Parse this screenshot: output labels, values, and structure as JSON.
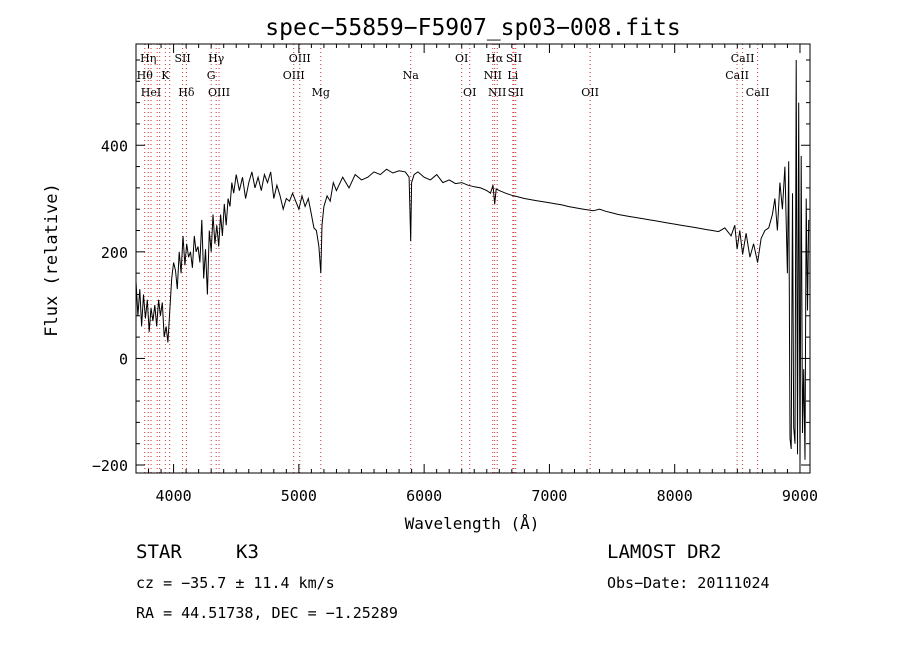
{
  "chart_data": {
    "type": "line",
    "title": "spec−55859−F5907_sp03−008.fits",
    "xlabel": "Wavelength (Å)",
    "ylabel": "Flux (relative)",
    "xlim": [
      3700,
      9080
    ],
    "ylim": [
      -215,
      590
    ],
    "xticks": [
      4000,
      5000,
      6000,
      7000,
      8000,
      9000
    ],
    "yticks": [
      -200,
      0,
      200,
      400
    ],
    "grid": false,
    "line_color": "#000000",
    "marker_color": "#cc3333",
    "series": [
      {
        "x": [
          3700,
          3715,
          3730,
          3745,
          3760,
          3775,
          3790,
          3805,
          3820,
          3835,
          3850,
          3865,
          3880,
          3895,
          3910,
          3925,
          3940,
          3955,
          3970,
          3985,
          4000,
          4015,
          4030,
          4045,
          4060,
          4075,
          4090,
          4105,
          4120,
          4135,
          4150,
          4165,
          4180,
          4195,
          4210,
          4225,
          4240,
          4255,
          4270,
          4285,
          4300,
          4315,
          4330,
          4345,
          4360,
          4375,
          4390,
          4405,
          4420,
          4435,
          4450,
          4465,
          4480,
          4500,
          4525,
          4550,
          4575,
          4600,
          4625,
          4650,
          4675,
          4700,
          4725,
          4750,
          4775,
          4800,
          4825,
          4850,
          4875,
          4900,
          4925,
          4950,
          4975,
          5000,
          5025,
          5050,
          5075,
          5100,
          5120,
          5140,
          5160,
          5175,
          5185,
          5200,
          5225,
          5250,
          5275,
          5300,
          5350,
          5400,
          5450,
          5500,
          5550,
          5600,
          5650,
          5700,
          5750,
          5800,
          5850,
          5880,
          5893,
          5900,
          5920,
          5950,
          6000,
          6050,
          6100,
          6150,
          6200,
          6250,
          6300,
          6350,
          6400,
          6450,
          6500,
          6530,
          6550,
          6563,
          6575,
          6600,
          6650,
          6700,
          6750,
          6800,
          6850,
          6900,
          6950,
          7000,
          7050,
          7100,
          7150,
          7200,
          7250,
          7300,
          7350,
          7400,
          7450,
          7500,
          7550,
          7600,
          7650,
          7700,
          7750,
          7800,
          7850,
          7900,
          7950,
          8000,
          8050,
          8100,
          8150,
          8200,
          8250,
          8300,
          8350,
          8400,
          8450,
          8480,
          8498,
          8520,
          8542,
          8570,
          8600,
          8630,
          8662,
          8690,
          8720,
          8750,
          8780,
          8800,
          8820,
          8840,
          8860,
          8880,
          8900,
          8910,
          8920,
          8930,
          8940,
          8950,
          8960,
          8970,
          8980,
          8990,
          9000,
          9010,
          9020,
          9030,
          9040,
          9050,
          9060,
          9070
        ],
        "y": [
          145,
          80,
          130,
          60,
          120,
          75,
          110,
          50,
          95,
          70,
          100,
          60,
          110,
          80,
          105,
          40,
          60,
          30,
          90,
          150,
          180,
          165,
          130,
          200,
          160,
          230,
          175,
          215,
          190,
          200,
          170,
          230,
          200,
          210,
          180,
          260,
          150,
          205,
          120,
          240,
          200,
          270,
          215,
          250,
          210,
          270,
          230,
          290,
          250,
          300,
          285,
          330,
          310,
          345,
          315,
          340,
          300,
          330,
          350,
          320,
          340,
          315,
          345,
          330,
          350,
          300,
          325,
          305,
          280,
          300,
          295,
          310,
          295,
          280,
          305,
          285,
          300,
          270,
          245,
          240,
          210,
          160,
          250,
          285,
          305,
          295,
          330,
          315,
          340,
          320,
          345,
          335,
          340,
          350,
          345,
          355,
          348,
          352,
          350,
          340,
          220,
          330,
          345,
          350,
          340,
          335,
          345,
          330,
          335,
          328,
          330,
          325,
          322,
          320,
          315,
          310,
          325,
          290,
          318,
          315,
          310,
          306,
          303,
          300,
          298,
          296,
          294,
          292,
          290,
          288,
          285,
          283,
          281,
          279,
          277,
          280,
          276,
          273,
          270,
          268,
          266,
          264,
          262,
          260,
          258,
          256,
          254,
          252,
          250,
          248,
          246,
          244,
          242,
          240,
          238,
          245,
          230,
          250,
          205,
          240,
          195,
          235,
          190,
          215,
          180,
          225,
          240,
          245,
          270,
          300,
          240,
          330,
          280,
          360,
          160,
          370,
          -150,
          -170,
          310,
          -130,
          -160,
          560,
          -180,
          480,
          -200,
          380,
          -140,
          -20,
          -190,
          300,
          90,
          260
        ]
      }
    ],
    "lines": [
      {
        "wl": 3770,
        "label": "Hθ",
        "row": 1
      },
      {
        "wl": 3798,
        "label": "Hη",
        "row": 0
      },
      {
        "wl": 3820,
        "label": "HeI",
        "row": 2
      },
      {
        "wl": 3869,
        "label": "",
        "row": 0
      },
      {
        "wl": 3889,
        "label": "",
        "row": 1
      },
      {
        "wl": 3934,
        "label": "K",
        "row": 1
      },
      {
        "wl": 3969,
        "label": "",
        "row": 1
      },
      {
        "wl": 4072,
        "label": "SII",
        "row": 0
      },
      {
        "wl": 4102,
        "label": "Hδ",
        "row": 2
      },
      {
        "wl": 4300,
        "label": "G",
        "row": 1
      },
      {
        "wl": 4340,
        "label": "Hγ",
        "row": 0
      },
      {
        "wl": 4363,
        "label": "OIII",
        "row": 2
      },
      {
        "wl": 4959,
        "label": "OIII",
        "row": 1
      },
      {
        "wl": 5007,
        "label": "OIII",
        "row": 0
      },
      {
        "wl": 5175,
        "label": "Mg",
        "row": 2
      },
      {
        "wl": 5893,
        "label": "Na",
        "row": 1
      },
      {
        "wl": 6300,
        "label": "OI",
        "row": 0
      },
      {
        "wl": 6364,
        "label": "OI",
        "row": 2
      },
      {
        "wl": 6548,
        "label": "NII",
        "row": 1
      },
      {
        "wl": 6563,
        "label": "Hα",
        "row": 0
      },
      {
        "wl": 6583,
        "label": "NII",
        "row": 2
      },
      {
        "wl": 6708,
        "label": "Li",
        "row": 1
      },
      {
        "wl": 6717,
        "label": "SII",
        "row": 0
      },
      {
        "wl": 6731,
        "label": "SII",
        "row": 2
      },
      {
        "wl": 7325,
        "label": "OII",
        "row": 2
      },
      {
        "wl": 8498,
        "label": "CaII",
        "row": 1
      },
      {
        "wl": 8542,
        "label": "CaII",
        "row": 0
      },
      {
        "wl": 8662,
        "label": "CaII",
        "row": 2
      }
    ]
  },
  "info": {
    "class_label": "STAR",
    "subclass": "K3",
    "survey": "LAMOST DR2",
    "redshift": "cz = −35.7 ± 11.4 km/s",
    "obs_date": "Obs−Date: 20111024",
    "coords": "RA =  44.51738, DEC =  −1.25289"
  }
}
